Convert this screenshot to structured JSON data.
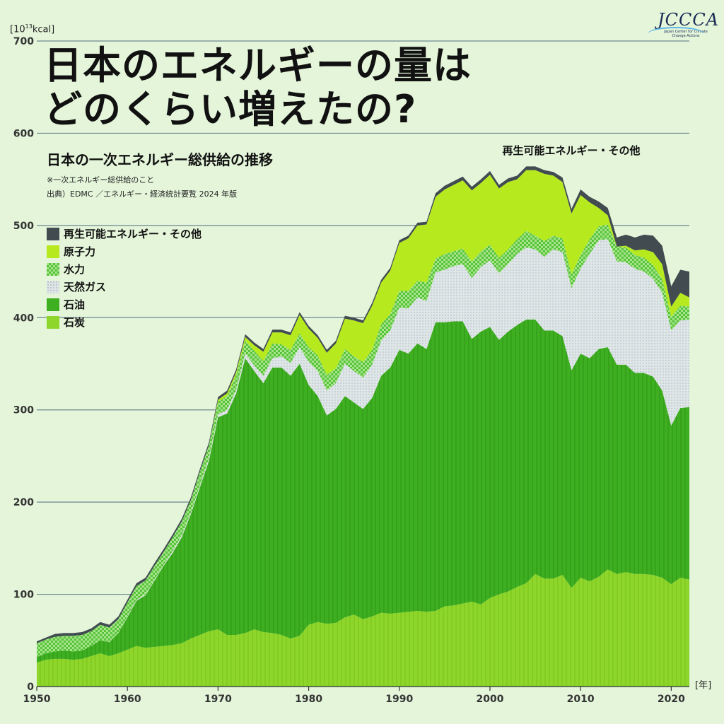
{
  "headline": {
    "line1": "日本のエネルギーの量は",
    "line2": "どのくらい増えたの?"
  },
  "subtitle": "日本の一次エネルギー総供給の推移",
  "note": "※一次エネルギー総供給のこと",
  "source": "出典）EDMC ／エネルギー・経済統計要覧 2024 年版",
  "logo": {
    "text": "JCCCA",
    "tagline": "Japan Center for Climate Change Actions"
  },
  "colors": {
    "background": "#e4f5da",
    "coal": "#8ed62c",
    "oil": "#3faf22",
    "gas": "#d4dde0",
    "hydro": "#6fd05a",
    "nuclear": "#b6ea1e",
    "renewable": "#414b50",
    "grid": "#6d8790"
  },
  "chart_data": {
    "type": "area",
    "stacked": true,
    "ylabel_unit_base": "[10",
    "ylabel_unit_exp": "13",
    "ylabel_unit_suffix": "kcal]",
    "xlabel_unit": "[年]",
    "ylim": [
      0,
      700
    ],
    "xlim": [
      1950,
      2022
    ],
    "yticks": [
      "0",
      "100",
      "200",
      "300",
      "400",
      "500",
      "600",
      "700"
    ],
    "xticks": [
      "1950",
      "1960",
      "1970",
      "1980",
      "1990",
      "2000",
      "2010",
      "2020"
    ],
    "grid": true,
    "legend_position": "left",
    "annotation": "再生可能エネルギー・その他",
    "x": [
      1950,
      1951,
      1952,
      1953,
      1954,
      1955,
      1956,
      1957,
      1958,
      1959,
      1960,
      1961,
      1962,
      1963,
      1964,
      1965,
      1966,
      1967,
      1968,
      1969,
      1970,
      1971,
      1972,
      1973,
      1974,
      1975,
      1976,
      1977,
      1978,
      1979,
      1980,
      1981,
      1982,
      1983,
      1984,
      1985,
      1986,
      1987,
      1988,
      1989,
      1990,
      1991,
      1992,
      1993,
      1994,
      1995,
      1996,
      1997,
      1998,
      1999,
      2000,
      2001,
      2002,
      2003,
      2004,
      2005,
      2006,
      2007,
      2008,
      2009,
      2010,
      2011,
      2012,
      2013,
      2014,
      2015,
      2016,
      2017,
      2018,
      2019,
      2020,
      2021,
      2022
    ],
    "series": [
      {
        "name": "石炭",
        "key": "coal",
        "values": [
          26,
          29,
          30,
          30,
          29,
          30,
          33,
          36,
          33,
          36,
          40,
          44,
          42,
          43,
          44,
          45,
          47,
          52,
          56,
          60,
          62,
          56,
          56,
          58,
          62,
          59,
          58,
          56,
          52,
          55,
          67,
          70,
          68,
          69,
          75,
          78,
          73,
          76,
          80,
          79,
          80,
          81,
          82,
          81,
          82,
          87,
          88,
          90,
          92,
          89,
          96,
          100,
          103,
          108,
          112,
          122,
          117,
          117,
          121,
          107,
          118,
          114,
          119,
          127,
          122,
          124,
          122,
          122,
          121,
          118,
          111,
          118,
          116
        ]
      },
      {
        "name": "石油",
        "key": "oil",
        "values": [
          6,
          7,
          8,
          9,
          9,
          9,
          11,
          14,
          15,
          22,
          35,
          49,
          57,
          72,
          87,
          100,
          115,
          135,
          160,
          185,
          230,
          240,
          262,
          298,
          280,
          270,
          288,
          290,
          285,
          295,
          260,
          245,
          226,
          232,
          240,
          230,
          228,
          237,
          257,
          267,
          285,
          280,
          290,
          285,
          313,
          308,
          308,
          306,
          285,
          296,
          294,
          276,
          282,
          284,
          286,
          276,
          269,
          269,
          259,
          236,
          243,
          242,
          247,
          241,
          227,
          225,
          218,
          218,
          215,
          203,
          172,
          184,
          187
        ]
      },
      {
        "name": "天然ガス",
        "key": "gas",
        "values": [
          0,
          0,
          0,
          0,
          0,
          0,
          0,
          0,
          0,
          0,
          1,
          1,
          1,
          1,
          1,
          2,
          2,
          2,
          2,
          3,
          3,
          4,
          4,
          5,
          6,
          8,
          10,
          12,
          14,
          18,
          25,
          27,
          27,
          28,
          35,
          34,
          34,
          36,
          38,
          40,
          46,
          49,
          50,
          52,
          54,
          57,
          60,
          62,
          66,
          70,
          72,
          72,
          73,
          77,
          78,
          76,
          80,
          88,
          91,
          89,
          92,
          113,
          118,
          117,
          112,
          111,
          113,
          110,
          106,
          106,
          103,
          95,
          95
        ]
      },
      {
        "name": "水力",
        "key": "hydro",
        "values": [
          15,
          15,
          16,
          16,
          17,
          17,
          16,
          17,
          16,
          15,
          15,
          15,
          15,
          15,
          14,
          15,
          15,
          13,
          15,
          14,
          14,
          15,
          16,
          14,
          16,
          16,
          16,
          13,
          14,
          15,
          16,
          17,
          17,
          16,
          16,
          16,
          17,
          16,
          18,
          18,
          18,
          19,
          18,
          20,
          15,
          17,
          16,
          17,
          18,
          17,
          17,
          17,
          16,
          16,
          18,
          15,
          17,
          15,
          15,
          15,
          15,
          16,
          15,
          16,
          16,
          16,
          15,
          15,
          15,
          15,
          15,
          16,
          14
        ]
      },
      {
        "name": "原子力",
        "key": "nuclear",
        "values": [
          0,
          0,
          0,
          0,
          0,
          0,
          0,
          0,
          0,
          0,
          0,
          0,
          0,
          0,
          0,
          0,
          0,
          0,
          0,
          0,
          2,
          3,
          3,
          4,
          6,
          10,
          12,
          13,
          16,
          20,
          20,
          19,
          24,
          27,
          33,
          39,
          42,
          48,
          45,
          47,
          52,
          57,
          60,
          63,
          67,
          70,
          72,
          74,
          77,
          74,
          76,
          75,
          73,
          65,
          66,
          71,
          73,
          65,
          61,
          66,
          65,
          40,
          20,
          10,
          0,
          2,
          5,
          9,
          14,
          16,
          11,
          14,
          10
        ]
      },
      {
        "name": "再生可能エネルギー・その他",
        "key": "renewable",
        "values": [
          2,
          2,
          3,
          3,
          3,
          3,
          3,
          3,
          3,
          3,
          3,
          3,
          3,
          3,
          3,
          3,
          3,
          3,
          3,
          3,
          3,
          3,
          3,
          3,
          3,
          3,
          3,
          3,
          3,
          3,
          3,
          3,
          3,
          3,
          3,
          3,
          3,
          3,
          3,
          3,
          3,
          3,
          3,
          3,
          4,
          4,
          4,
          4,
          4,
          4,
          4,
          4,
          4,
          4,
          4,
          4,
          4,
          4,
          5,
          5,
          6,
          6,
          7,
          8,
          10,
          12,
          14,
          16,
          18,
          20,
          22,
          25,
          28
        ]
      }
    ]
  }
}
